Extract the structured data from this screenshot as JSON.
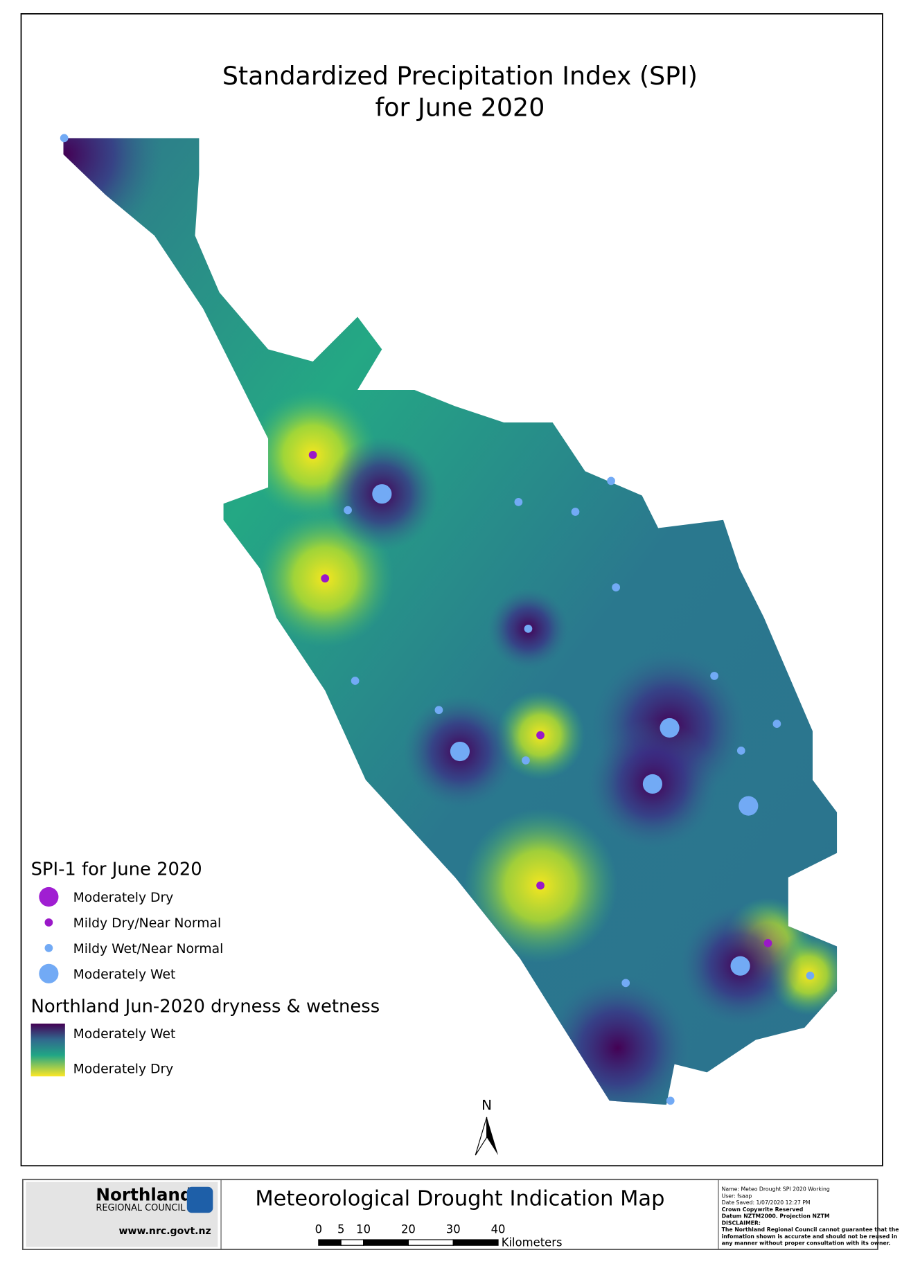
{
  "title": {
    "line1": "Standardized Precipitation Index (SPI)",
    "line2": "for June 2020"
  },
  "legend": {
    "points_title": "SPI-1 for June 2020",
    "points": [
      "Moderately Dry",
      "Mildy Dry/Near Normal",
      "Mildy Wet/Near Normal",
      "Moderately Wet"
    ],
    "surface_title": "Northland Jun-2020 dryness & wetness",
    "surface_labels": [
      "Moderately Wet",
      "Moderately Dry"
    ]
  },
  "north": "N",
  "footer": {
    "org": "Northland",
    "org_sub": "REGIONAL COUNCIL",
    "website": "www.nrc.govt.nz",
    "map_title": "Meteorological Drought Indication Map",
    "scale_ticks": [
      0,
      5,
      10,
      20,
      30,
      40
    ],
    "scale_unit": "Kilometers",
    "metadata": [
      "Name: Meteo Drought SPI 2020 Working",
      "User: fsaap",
      "Date Saved: 1/07/2020 12:27 PM",
      "Crown Copywrite Reserved",
      "Datum NZTM2000. Projection NZTM",
      "DISCLAIMER:",
      "The Northland Regional Council cannot guarantee that the",
      "infomation shown is accurate and should not be reused in",
      "any manner without proper consultation with its owner."
    ]
  }
}
